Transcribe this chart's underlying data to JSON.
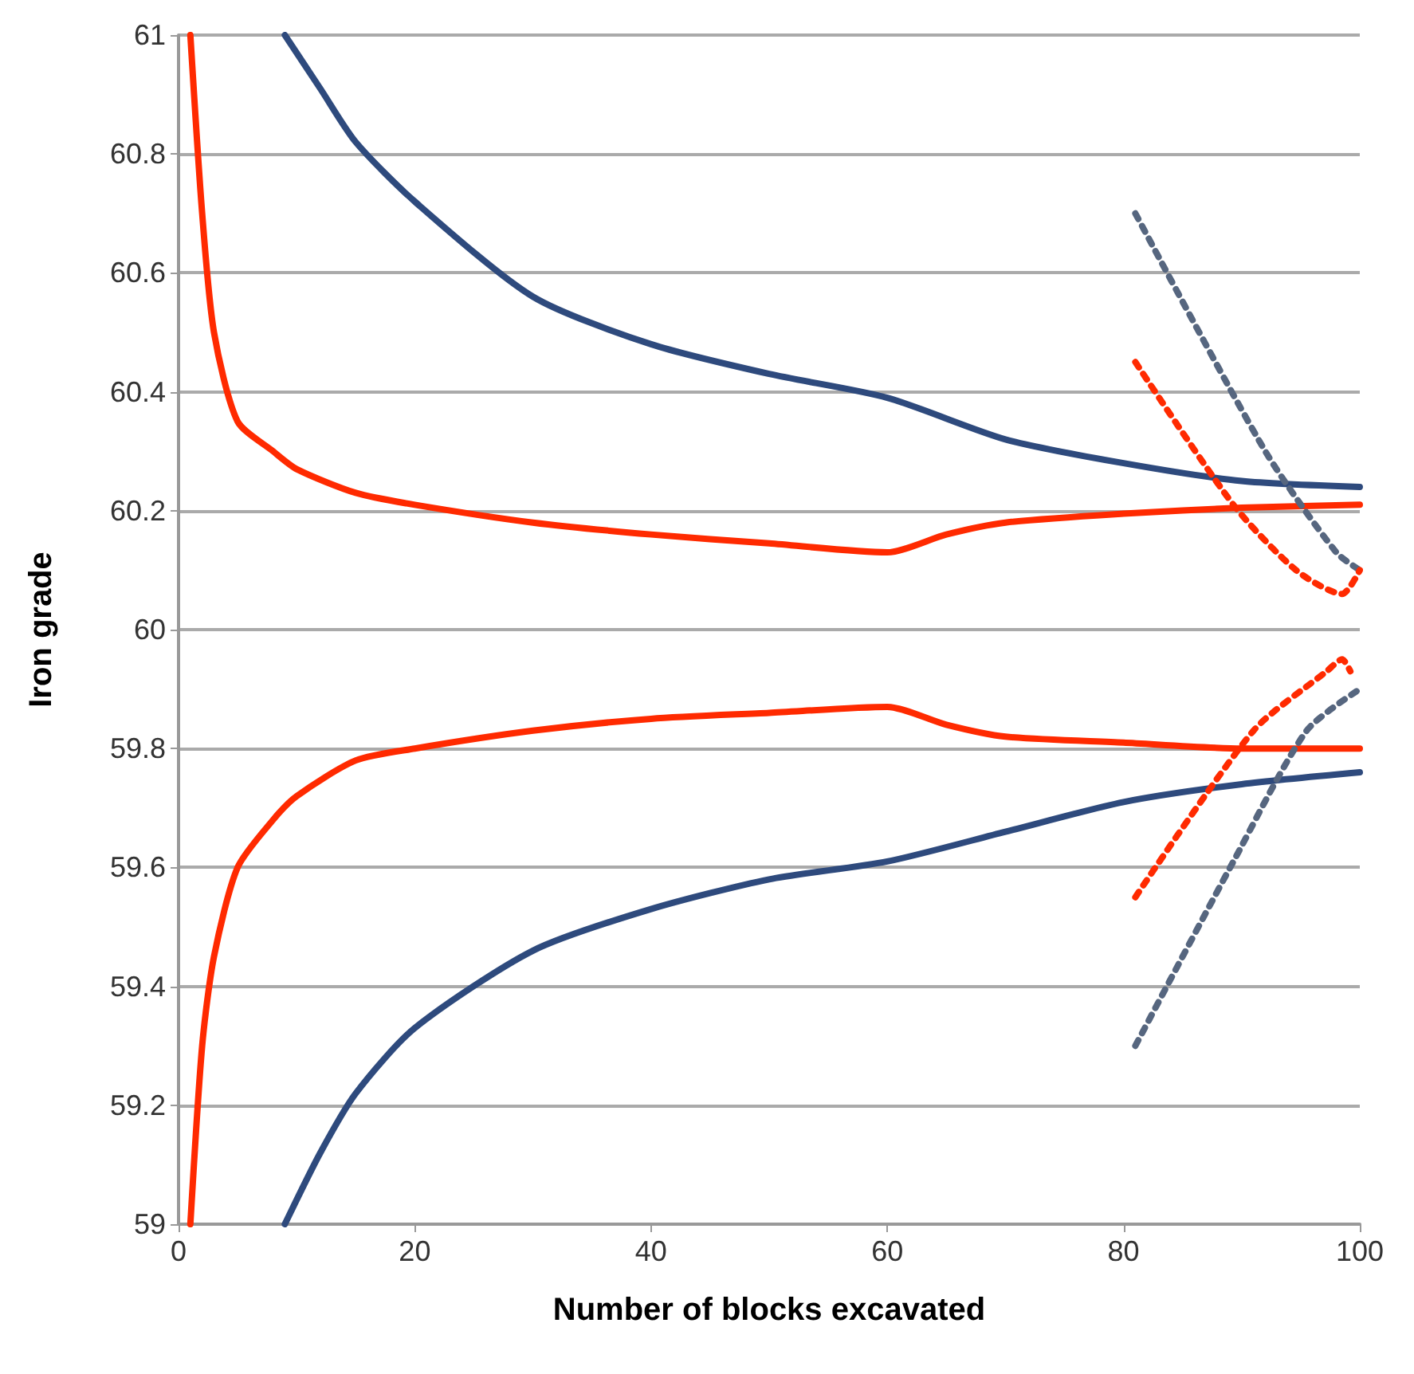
{
  "chart_data": {
    "type": "line",
    "xlabel": "Number of blocks excavated",
    "ylabel": "Iron grade",
    "xlim": [
      0,
      100
    ],
    "xticks": [
      0,
      20,
      40,
      60,
      80,
      100
    ],
    "ylim": [
      59,
      61
    ],
    "yticks": [
      59,
      59.2,
      59.4,
      59.6,
      59.8,
      60,
      60.2,
      60.4,
      60.6,
      60.8,
      61
    ],
    "grid": "y",
    "marker": "none",
    "series": [
      {
        "color": "#2e4a7d",
        "line_style": "solid",
        "x": [
          9,
          12,
          15,
          20,
          30,
          40,
          50,
          60,
          70,
          80,
          90,
          100
        ],
        "values": [
          61,
          60.91,
          60.82,
          60.72,
          60.56,
          60.48,
          60.43,
          60.39,
          60.32,
          60.28,
          60.25,
          60.24
        ]
      },
      {
        "color": "#2e4a7d",
        "line_style": "solid",
        "x": [
          9,
          12,
          15,
          20,
          30,
          40,
          50,
          60,
          70,
          80,
          90,
          100
        ],
        "values": [
          59,
          59.12,
          59.22,
          59.33,
          59.46,
          59.53,
          59.58,
          59.61,
          59.66,
          59.71,
          59.74,
          59.76
        ]
      },
      {
        "color": "#ff2a00",
        "line_style": "solid",
        "x": [
          1,
          2,
          3,
          5,
          8,
          10,
          15,
          20,
          30,
          40,
          50,
          60,
          65,
          70,
          80,
          90,
          100
        ],
        "values": [
          61,
          60.7,
          60.5,
          60.35,
          60.3,
          60.27,
          60.23,
          60.21,
          60.18,
          60.16,
          60.145,
          60.13,
          60.16,
          60.18,
          60.195,
          60.205,
          60.21
        ]
      },
      {
        "color": "#ff2a00",
        "line_style": "solid",
        "x": [
          1,
          2,
          3,
          5,
          8,
          10,
          15,
          20,
          30,
          40,
          50,
          60,
          65,
          70,
          80,
          90,
          100
        ],
        "values": [
          59,
          59.3,
          59.45,
          59.6,
          59.68,
          59.72,
          59.78,
          59.8,
          59.83,
          59.85,
          59.86,
          59.87,
          59.84,
          59.82,
          59.81,
          59.8,
          59.8
        ]
      },
      {
        "color": "#56667f",
        "line_style": "dashed",
        "x": [
          81,
          92,
          98,
          100
        ],
        "values": [
          60.7,
          60.3,
          60.13,
          60.1
        ]
      },
      {
        "color": "#ff2a00",
        "line_style": "dashed",
        "x": [
          81,
          89.3,
          94.6,
          98.5,
          100
        ],
        "values": [
          60.45,
          60.21,
          60.1,
          60.06,
          60.1
        ]
      },
      {
        "color": "#ff2a00",
        "line_style": "dashed",
        "x": [
          81,
          91,
          97.2,
          98.5,
          99.2
        ],
        "values": [
          59.55,
          59.83,
          59.93,
          59.95,
          59.93
        ]
      },
      {
        "color": "#56667f",
        "line_style": "dashed",
        "x": [
          81,
          89.3,
          95.5,
          100
        ],
        "values": [
          59.3,
          59.61,
          59.83,
          59.9
        ]
      }
    ]
  }
}
